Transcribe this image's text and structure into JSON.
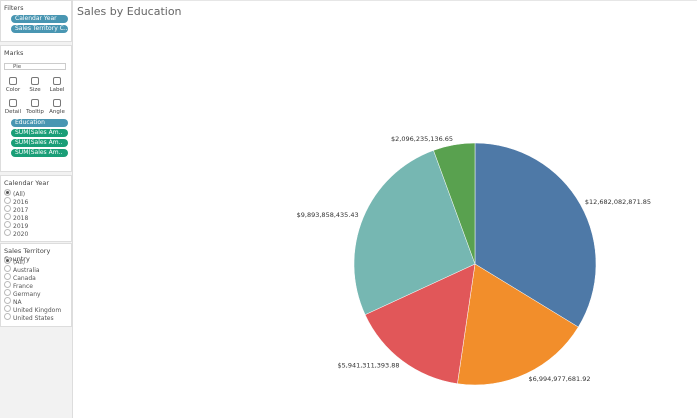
{
  "filters": {
    "title": "Filters",
    "pills": [
      "Calendar Year",
      "Sales Territory C.."
    ]
  },
  "marks": {
    "title": "Marks",
    "mark_type": "Pie",
    "buttons": [
      "Color",
      "Size",
      "Label",
      "Detail",
      "Tooltip",
      "Angle"
    ],
    "pills": [
      "Education",
      "SUM(Sales Am..",
      "SUM(Sales Am..",
      "SUM(Sales Am.."
    ]
  },
  "calendar_year": {
    "title": "Calendar Year",
    "options": [
      "(All)",
      "2016",
      "2017",
      "2018",
      "2019",
      "2020"
    ]
  },
  "sales_territory": {
    "title": "Sales Territory Country",
    "options": [
      "(All)",
      "Australia",
      "Canada",
      "France",
      "Germany",
      "NA",
      "United Kingdom",
      "United States"
    ]
  },
  "chart_data": {
    "type": "pie",
    "title": "Sales by Education",
    "values": [
      12682082871.85,
      6994977681.92,
      5941311393.88,
      9893858435.43,
      2096235136.65
    ],
    "value_labels": [
      "$12,682,082,871.85",
      "$6,994,977,681.92",
      "$5,941,311,393.88",
      "$9,893,858,435.43",
      "$2,096,235,136.65"
    ],
    "colors": [
      "#4e79a7",
      "#f28e2b",
      "#e15759",
      "#76b7b2",
      "#59a14f"
    ]
  }
}
